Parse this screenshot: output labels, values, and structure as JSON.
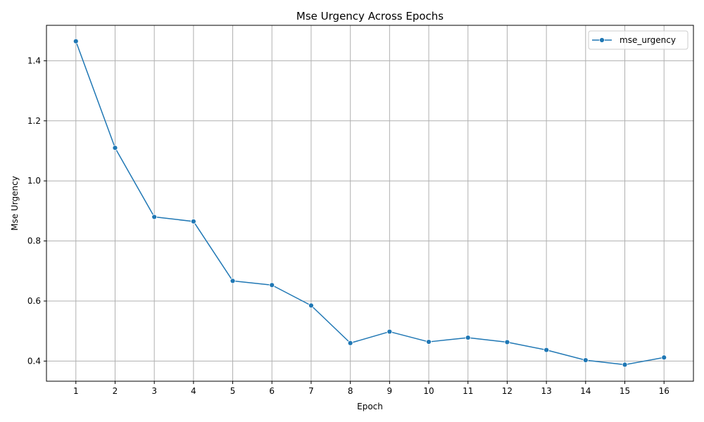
{
  "chart_data": {
    "type": "line",
    "title": "Mse Urgency Across Epochs",
    "xlabel": "Epoch",
    "ylabel": "Mse Urgency",
    "x": [
      1,
      2,
      3,
      4,
      5,
      6,
      7,
      8,
      9,
      10,
      11,
      12,
      13,
      14,
      15,
      16
    ],
    "x_ticks": [
      "1",
      "2",
      "3",
      "4",
      "5",
      "6",
      "7",
      "8",
      "9",
      "10",
      "11",
      "12",
      "13",
      "14",
      "15",
      "16"
    ],
    "y_ticks": [
      "0.4",
      "0.6",
      "0.8",
      "1.0",
      "1.2",
      "1.4"
    ],
    "xlim": [
      0.25,
      16.75
    ],
    "ylim": [
      0.333,
      1.518
    ],
    "grid": true,
    "legend_position": "top-right",
    "series": [
      {
        "name": "mse_urgency",
        "color": "#1f77b4",
        "marker": "circle",
        "values": [
          1.465,
          1.11,
          0.88,
          0.865,
          0.667,
          0.653,
          0.585,
          0.46,
          0.498,
          0.464,
          0.478,
          0.463,
          0.437,
          0.403,
          0.388,
          0.412
        ]
      }
    ]
  }
}
